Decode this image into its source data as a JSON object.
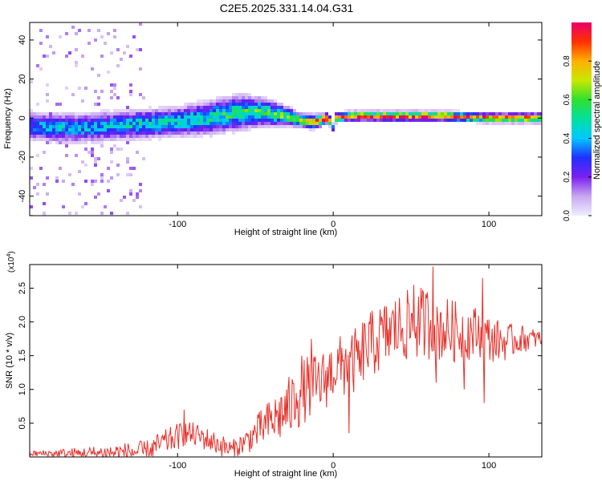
{
  "title": "C2E5.2025.331.14.04.G31",
  "colors": {
    "background": "#ffffff",
    "axis": "#000000",
    "snr_line": "#e8302a",
    "colormap": [
      "#ffffff",
      "#c8a8f0",
      "#7a20f0",
      "#2030ff",
      "#00c8ff",
      "#00e0a0",
      "#30e030",
      "#c8e800",
      "#ffb000",
      "#ff3000",
      "#e8006a"
    ]
  },
  "chart_data": [
    {
      "type": "heatmap",
      "title": "C2E5.2025.331.14.04.G31",
      "xlabel": "Height of straight line (km)",
      "ylabel": "Frequency (Hz)",
      "xlim": [
        -195,
        134
      ],
      "ylim": [
        -50,
        49
      ],
      "x_ticks": [
        -100,
        0,
        100
      ],
      "x_tick_labels": [
        "-100",
        "0",
        "100"
      ],
      "y_ticks": [
        -40,
        -20,
        0,
        20,
        40
      ],
      "y_tick_labels": [
        "-40",
        "-20",
        "0",
        "20",
        "40"
      ],
      "colorbar": {
        "label": "Normalized spectral amplitude",
        "range": [
          0,
          1
        ],
        "ticks": [
          0.0,
          0.2,
          0.4,
          0.6,
          0.8
        ],
        "tick_labels": [
          "0.0",
          "0.2",
          "0.4",
          "0.6",
          "0.8"
        ]
      },
      "ridge": {
        "x": [
          -195,
          -180,
          -160,
          -140,
          -120,
          -100,
          -80,
          -60,
          -45,
          -30,
          -22,
          -12,
          -3,
          0,
          2,
          10,
          40,
          70,
          100,
          134
        ],
        "center_hz": [
          -4,
          -5,
          -5,
          -4,
          -3,
          -2,
          0,
          3,
          3,
          1,
          -1,
          -2,
          0,
          -5,
          0,
          1,
          1,
          1,
          0,
          0
        ],
        "halfwidth_hz": [
          6,
          6,
          6,
          6,
          6,
          6,
          7,
          7,
          6,
          4,
          3,
          3,
          2,
          2,
          2,
          2,
          2,
          2,
          2,
          2
        ],
        "amplitude": [
          0.35,
          0.4,
          0.4,
          0.4,
          0.45,
          0.45,
          0.5,
          0.55,
          0.55,
          0.6,
          0.65,
          0.7,
          1.0,
          0.3,
          0.9,
          0.85,
          0.9,
          0.9,
          0.85,
          0.8
        ]
      }
    },
    {
      "type": "line",
      "xlabel": "Height of straight line (km)",
      "ylabel": "SNR (10 * v/v)",
      "y_scale_label": "(x10",
      "y_scale_exponent": "4",
      "y_scale_suffix": ")",
      "y_units_scale": 10000,
      "xlim": [
        -195,
        134
      ],
      "ylim": [
        0.0,
        2.85
      ],
      "x_ticks": [
        -100,
        0,
        100
      ],
      "x_tick_labels": [
        "-100",
        "0",
        "100"
      ],
      "y_ticks": [
        0.5,
        1.0,
        1.5,
        2.0,
        2.5
      ],
      "y_tick_labels": [
        "0.5",
        "1.0",
        "1.5",
        "2.0",
        "2.5"
      ],
      "envelope": {
        "x": [
          -195,
          -160,
          -120,
          -110,
          -100,
          -95,
          -85,
          -75,
          -65,
          -55,
          -45,
          -35,
          -25,
          -18,
          -12,
          -5,
          0,
          5,
          10,
          20,
          30,
          40,
          50,
          60,
          70,
          80,
          95,
          100,
          110,
          120,
          134
        ],
        "y": [
          0.05,
          0.05,
          0.08,
          0.2,
          0.3,
          0.35,
          0.3,
          0.2,
          0.1,
          0.25,
          0.45,
          0.6,
          0.8,
          1.0,
          1.05,
          1.15,
          1.3,
          1.35,
          1.3,
          1.6,
          1.75,
          1.9,
          1.95,
          2.0,
          1.9,
          1.85,
          1.85,
          1.75,
          1.7,
          1.75,
          1.75
        ]
      },
      "noise": {
        "x": [
          -195,
          -100,
          -60,
          -25,
          0,
          20,
          60,
          100,
          134
        ],
        "amp": [
          0.04,
          0.2,
          0.15,
          0.5,
          0.45,
          0.5,
          0.55,
          0.35,
          0.12
        ]
      },
      "peaks": [
        {
          "x": -96,
          "y": 0.7
        },
        {
          "x": -24,
          "y": 0.95
        },
        {
          "x": -20,
          "y": 1.5
        },
        {
          "x": -14,
          "y": 1.75
        },
        {
          "x": 8,
          "y": 1.6
        },
        {
          "x": 10,
          "y": 0.35
        },
        {
          "x": 18,
          "y": 1.2
        },
        {
          "x": 52,
          "y": 2.55
        },
        {
          "x": 64,
          "y": 2.82
        },
        {
          "x": 66,
          "y": 1.1
        },
        {
          "x": 84,
          "y": 1.0
        },
        {
          "x": 96,
          "y": 2.65
        },
        {
          "x": 97,
          "y": 0.8
        }
      ]
    }
  ]
}
